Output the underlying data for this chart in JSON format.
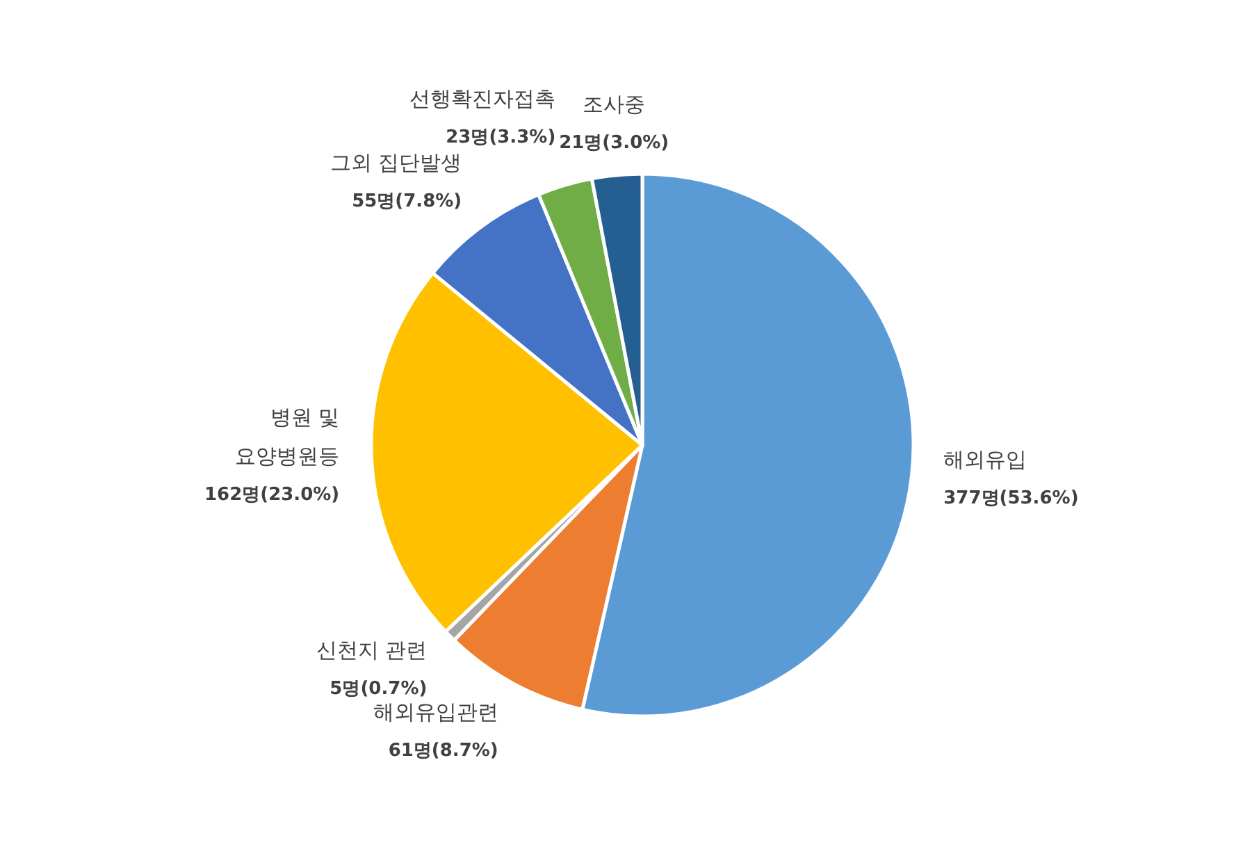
{
  "chart_data": {
    "type": "pie",
    "categories": [
      "해외유입",
      "해외유입관련",
      "신천지 관련",
      "병원 및\n요양병원등",
      "그외 집단발생",
      "선행확진자접촉",
      "조사중"
    ],
    "values": [
      377,
      61,
      5,
      162,
      55,
      23,
      21
    ],
    "value_labels": [
      "377명(53.6%)",
      "61명(8.7%)",
      "5명(0.7%)",
      "162명(23.0%)",
      "55명(7.8%)",
      "23명(3.3%)",
      "21명(3.0%)"
    ],
    "colors": [
      "#5b9bd5",
      "#ed7d31",
      "#a5a5a5",
      "#ffc000",
      "#4472c4",
      "#70ad47",
      "#255e91"
    ],
    "legend": false
  }
}
